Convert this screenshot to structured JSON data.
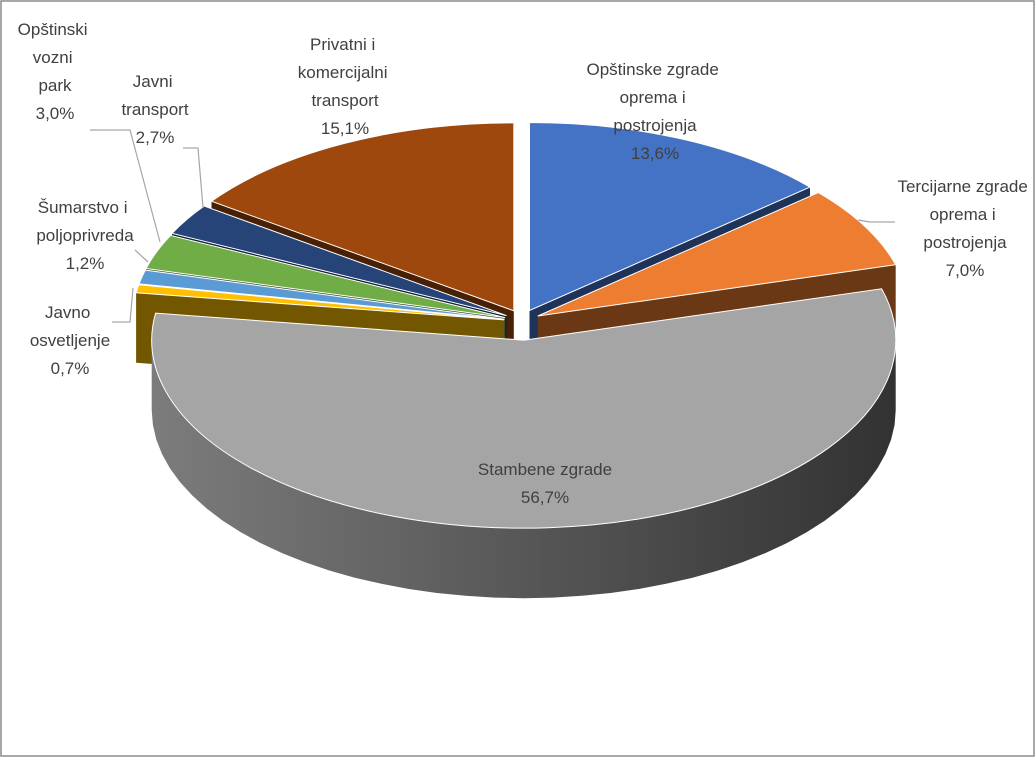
{
  "chart_data": {
    "type": "pie3d",
    "categories": [
      "Opštinske zgrade oprema i postrojenja",
      "Tercijarne zgrade oprema i postrojenja",
      "Stambene zgrade",
      "Javno osvetljenje",
      "Šumarstvo i poljoprivreda",
      "Opštinski vozni park",
      "Javni transport",
      "Privatni i komercijalni transport"
    ],
    "values": [
      13.6,
      7.0,
      56.7,
      0.7,
      1.2,
      3.0,
      2.7,
      15.1
    ],
    "value_labels": [
      "13,6%",
      "7,0%",
      "56,7%",
      "0,7%",
      "1,2%",
      "3,0%",
      "2,7%",
      "15,1%"
    ],
    "colors": [
      "#4472c4",
      "#ed7d31",
      "#a5a5a5",
      "#ffc000",
      "#5b9bd5",
      "#70ad47",
      "#264478",
      "#9e480e"
    ]
  }
}
